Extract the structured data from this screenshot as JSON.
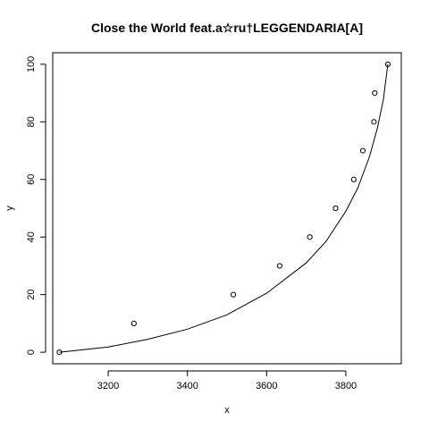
{
  "chart_data": {
    "type": "scatter",
    "title": "Close the World feat.a☆ru†LEGGENDARIA[A]",
    "xlabel": "x",
    "ylabel": "y",
    "xlim": [
      3060,
      3940
    ],
    "ylim": [
      -4,
      104
    ],
    "xticks": [
      3200,
      3400,
      3600,
      3800
    ],
    "yticks": [
      0,
      20,
      40,
      60,
      80,
      100
    ],
    "points": [
      {
        "x": 3077,
        "y": 0
      },
      {
        "x": 3265,
        "y": 10
      },
      {
        "x": 3516,
        "y": 20
      },
      {
        "x": 3633,
        "y": 30
      },
      {
        "x": 3709,
        "y": 40
      },
      {
        "x": 3774,
        "y": 50
      },
      {
        "x": 3820,
        "y": 60
      },
      {
        "x": 3843,
        "y": 70
      },
      {
        "x": 3871,
        "y": 80
      },
      {
        "x": 3873,
        "y": 90
      },
      {
        "x": 3906,
        "y": 100
      }
    ],
    "fit_curve": [
      {
        "x": 3077,
        "y": 0
      },
      {
        "x": 3200,
        "y": 1.8
      },
      {
        "x": 3300,
        "y": 4.5
      },
      {
        "x": 3400,
        "y": 8
      },
      {
        "x": 3500,
        "y": 13
      },
      {
        "x": 3600,
        "y": 20.5
      },
      {
        "x": 3700,
        "y": 31
      },
      {
        "x": 3750,
        "y": 38.5
      },
      {
        "x": 3800,
        "y": 49
      },
      {
        "x": 3830,
        "y": 57
      },
      {
        "x": 3860,
        "y": 68
      },
      {
        "x": 3880,
        "y": 78
      },
      {
        "x": 3895,
        "y": 88
      },
      {
        "x": 3906,
        "y": 100
      }
    ],
    "grid": false,
    "legend": false
  }
}
